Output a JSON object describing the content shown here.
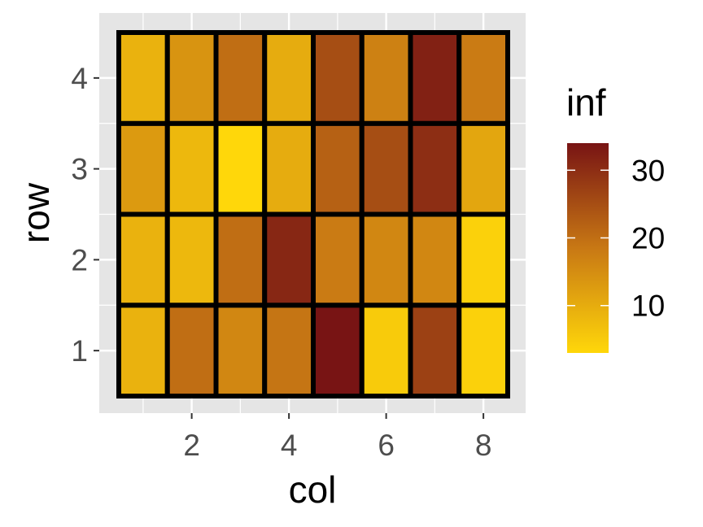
{
  "chart_data": {
    "type": "heatmap",
    "xlabel": "col",
    "ylabel": "row",
    "x_ticks": [
      2,
      4,
      6,
      8
    ],
    "y_ticks": [
      1,
      2,
      3,
      4
    ],
    "xlim": [
      0.5,
      8.5
    ],
    "ylim": [
      0.5,
      4.5
    ],
    "cols": [
      1,
      2,
      3,
      4,
      5,
      6,
      7,
      8
    ],
    "rows": [
      1,
      2,
      3,
      4
    ],
    "values": [
      [
        9,
        20,
        16,
        19,
        34,
        5,
        27,
        4
      ],
      [
        9,
        8,
        20,
        31,
        18,
        16,
        16,
        4
      ],
      [
        13,
        8,
        3,
        10,
        22,
        25,
        30,
        11
      ],
      [
        9,
        14,
        20,
        10,
        25,
        17,
        32,
        18
      ]
    ],
    "legend": {
      "title": "inf",
      "ticks": [
        10,
        20,
        30
      ],
      "range": [
        3,
        34
      ],
      "position": "right"
    },
    "colors": {
      "low": "#ffd70a",
      "mid": "#c87814",
      "high": "#781414",
      "panel_background": "#e5e5e5",
      "grid": "#ffffff",
      "tile_border": "#000000"
    }
  }
}
